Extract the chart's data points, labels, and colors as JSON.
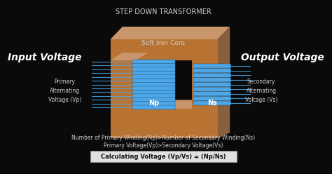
{
  "bg_color": "#0a0a0a",
  "title": "STEP DOWN TRANSFORMER",
  "title_color": "#cccccc",
  "title_fontsize": 7,
  "input_label": "Input Voltage",
  "output_label": "Output Voltage",
  "primary_label": "Primary\nAlternating\nVoltage (Vp)",
  "secondary_label": "Secondary\nAlternating\nVoltage (Vs)",
  "core_label": "Soft Iron Core",
  "np_label": "Np",
  "ns_label": "Ns",
  "line1": "Number of Primary Winding(Np)>Number of Secondary Winding(Ns)",
  "line2": "Primary Voltage(Vp)>Secondary Voltage(Vs)",
  "line3": "Calculating Voltage (Vp/Vs) = (Np/Ns)",
  "copper_color": "#b87333",
  "copper_dark": "#8b5e3c",
  "coil_color": "#4da6e8",
  "core_top_color": "#c8956c",
  "text_white": "#ffffff",
  "text_gray": "#cccccc",
  "box_bg": "#e0e0e0",
  "box_text": "#111111"
}
